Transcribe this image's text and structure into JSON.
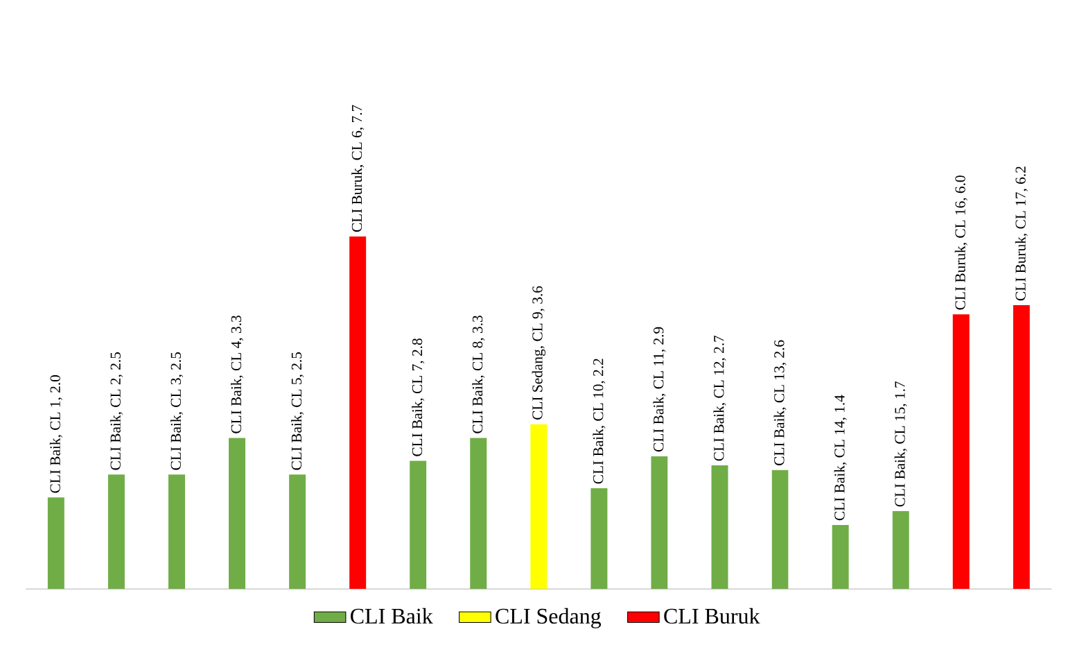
{
  "chart_data": {
    "type": "bar",
    "categories": [
      null,
      null,
      null,
      null,
      null,
      null,
      null,
      null,
      null,
      null,
      null,
      null,
      null,
      null,
      null,
      null,
      null
    ],
    "series": [
      {
        "name": "CLI Baik",
        "color": "#70ad47",
        "values": [
          2.0,
          2.5,
          2.5,
          3.3,
          2.5,
          null,
          2.8,
          3.3,
          null,
          2.2,
          2.9,
          2.7,
          2.6,
          1.4,
          1.7,
          null,
          null
        ],
        "value_labels": [
          "CLI Baik, CL 1, 2.0",
          "CLI Baik, CL 2, 2.5",
          "CLI Baik, CL 3, 2.5",
          "CLI Baik, CL 4, 3.3",
          "CLI Baik, CL 5, 2.5",
          null,
          "CLI Baik, CL 7, 2.8",
          "CLI Baik, CL 8, 3.3",
          null,
          "CLI Baik, CL 10, 2.2",
          "CLI Baik, CL 11, 2.9",
          "CLI Baik, CL 12, 2.7",
          "CLI Baik, CL 13, 2.6",
          "CLI Baik, CL 14, 1.4",
          "CLI Baik, CL 15, 1.7",
          null,
          null
        ]
      },
      {
        "name": "CLI Sedang",
        "color": "#ffff00",
        "values": [
          null,
          null,
          null,
          null,
          null,
          null,
          null,
          null,
          3.6,
          null,
          null,
          null,
          null,
          null,
          null,
          null,
          null
        ],
        "value_labels": [
          null,
          null,
          null,
          null,
          null,
          null,
          null,
          null,
          "CLI Sedang, CL 9, 3.6",
          null,
          null,
          null,
          null,
          null,
          null,
          null,
          null
        ]
      },
      {
        "name": "CLI Buruk",
        "color": "#ff0000",
        "values": [
          null,
          null,
          null,
          null,
          null,
          7.7,
          null,
          null,
          null,
          null,
          null,
          null,
          null,
          null,
          null,
          6.0,
          6.2
        ],
        "value_labels": [
          null,
          null,
          null,
          null,
          null,
          "CLI Buruk, CL 6, 7.7",
          null,
          null,
          null,
          null,
          null,
          null,
          null,
          null,
          null,
          "CLI Buruk, CL 16, 6.0",
          "CLI Buruk, CL 17, 6.2"
        ]
      }
    ],
    "stacked": true,
    "legend": "bottom"
  }
}
